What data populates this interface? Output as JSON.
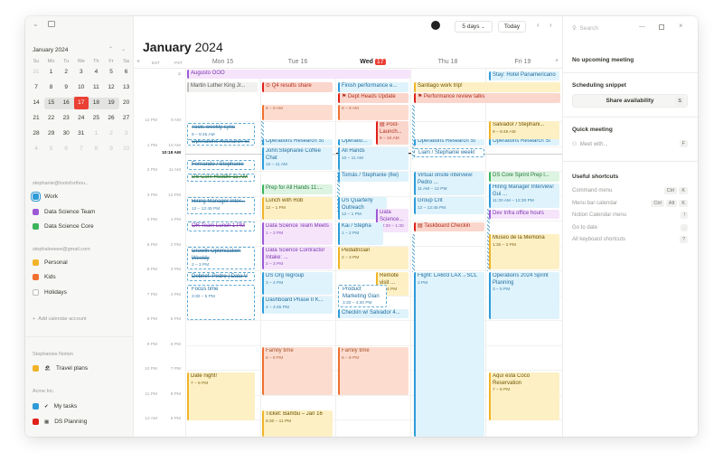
{
  "sidebar": {
    "mini_calendar": {
      "title": "January 2024",
      "weekdays": [
        "Su",
        "Mo",
        "Tu",
        "We",
        "Th",
        "Fr",
        "Sa"
      ],
      "weeks": [
        [
          "31",
          "1",
          "2",
          "3",
          "4",
          "5",
          "6"
        ],
        [
          "7",
          "8",
          "9",
          "10",
          "11",
          "12",
          "13"
        ],
        [
          "14",
          "15",
          "16",
          "17",
          "18",
          "19",
          "20"
        ],
        [
          "21",
          "22",
          "23",
          "24",
          "25",
          "26",
          "27"
        ],
        [
          "28",
          "29",
          "30",
          "31",
          "1",
          "2",
          "3"
        ],
        [
          "4",
          "5",
          "6",
          "7",
          "8",
          "9",
          "10"
        ]
      ],
      "today": "17"
    },
    "accounts": [
      {
        "name": "stephanie@toolsforthou...",
        "calendars": [
          {
            "label": "Work",
            "color": "#2e9bd8"
          },
          {
            "label": "Data Science Team",
            "color": "#9b59d6"
          },
          {
            "label": "Data Science Core",
            "color": "#3bb45c"
          }
        ]
      },
      {
        "name": "stephaleeeee@gmail.com",
        "calendars": [
          {
            "label": "Personal",
            "color": "#f0b429"
          },
          {
            "label": "Kids",
            "color": "#f07030"
          },
          {
            "label": "Holidays",
            "color": "#bdbdbd"
          }
        ]
      }
    ],
    "add_account": "Add calendar account",
    "notion": {
      "name": "Stephanies Notion",
      "items": [
        {
          "label": "Travel plans",
          "icon": "🏖",
          "color": "#f0b429"
        }
      ]
    },
    "acme": {
      "name": "Acme Inc.",
      "items": [
        {
          "label": "My tasks",
          "icon": "✔",
          "color": "#2e9bd8"
        },
        {
          "label": "DS Planning",
          "icon": "▦",
          "color": "#e0201a"
        }
      ]
    }
  },
  "header": {
    "month": "January",
    "year": "2024",
    "view": "5 days",
    "today_button": "Today",
    "tz": [
      "EST",
      "PST"
    ],
    "days": [
      {
        "label": "Mon 15"
      },
      {
        "label": "Tue 16"
      },
      {
        "label": "Wed",
        "badge": "17"
      },
      {
        "label": "Thu 18"
      },
      {
        "label": "Fri 19"
      }
    ],
    "now": "10:18 AM"
  },
  "time_labels": {
    "est": [
      "12 PM",
      "1 PM",
      "2 PM",
      "3 PM",
      "4 PM",
      "5 PM",
      "6 PM",
      "7 PM",
      "8 PM",
      "9 PM",
      "10 PM",
      "11 PM",
      "12 AM"
    ],
    "pst": [
      "9 AM",
      "10 AM",
      "11 AM",
      "12 PM",
      "1 PM",
      "2 PM",
      "3 PM",
      "4 PM",
      "5 PM",
      "6 PM",
      "7 PM",
      "8 PM",
      "9 PM"
    ]
  },
  "colors": {
    "blue": {
      "bg": "#dff3fc",
      "bar": "#2e9bd8",
      "fg": "#1f6d9e"
    },
    "red": {
      "bg": "#fbd6cc",
      "bar": "#e0201a",
      "fg": "#b0301e"
    },
    "salmon": {
      "bg": "#fcdccf",
      "bar": "#f07030",
      "fg": "#a8502a"
    },
    "yellow": {
      "bg": "#fdf0c4",
      "bar": "#f0b429",
      "fg": "#6e5200"
    },
    "purple": {
      "bg": "#f6e4fb",
      "bar": "#9b59d6",
      "fg": "#7b35b0"
    },
    "green": {
      "bg": "#dcf4e1",
      "bar": "#3bb45c",
      "fg": "#23773a"
    },
    "gray": {
      "bg": "#f1f1ef",
      "bar": "#bdbdbd",
      "fg": "#55534e"
    },
    "today": "#eb4034"
  },
  "events": [
    {
      "title": "Augusto OOO",
      "color": "purple"
    },
    {
      "title": "Martin Luther King Jr...",
      "color": "gray"
    },
    {
      "title": "⊙ Q4 results share",
      "color": "red"
    },
    {
      "title": "Finish performance e...",
      "color": "blue"
    },
    {
      "title": "Santiago work trip!",
      "color": "yellow"
    },
    {
      "title": "Stay: Hotel Panamericano",
      "color": "blue"
    },
    {
      "title": "⚑ Dept Heads Update",
      "color": "red"
    },
    {
      "title": "⚑ Performance review talks",
      "color": "red"
    },
    {
      "title": "",
      "time": "8 – 9 AM",
      "color": "salmon"
    },
    {
      "title": "",
      "time": "8 – 9 AM",
      "color": "salmon"
    },
    {
      "title": "Tools weekly sync",
      "time": "9 – 9:45 AM",
      "color": "blue",
      "style": "declined"
    },
    {
      "title": "▤ Post-Launch...",
      "time": "9 – 10 AM",
      "color": "red"
    },
    {
      "title": "Salvador / Stephani...",
      "time": "9 – 9:45 AM",
      "color": "yellow"
    },
    {
      "title": "Operations Research St",
      "color": "blue",
      "style": "declined"
    },
    {
      "title": "Operations Research St",
      "color": "blue"
    },
    {
      "title": "Operations R",
      "color": "blue"
    },
    {
      "title": "Operations Research St",
      "color": "blue"
    },
    {
      "title": "Operations Research St",
      "color": "blue"
    },
    {
      "title": "John:Stephanie Coffee Chat",
      "time": "10 – 11 AM",
      "color": "blue"
    },
    {
      "title": "All Hands",
      "time": "10 – 11 AM",
      "color": "blue"
    },
    {
      "title": "Liam / Stephanie weekl",
      "color": "blue",
      "style": "tentative"
    },
    {
      "title": "Fernando / Stephanie",
      "color": "blue",
      "style": "declined"
    },
    {
      "title": "DS Core Huddle 11 AM",
      "color": "green",
      "style": "declined"
    },
    {
      "title": "Tomás / Stephanie (6w)",
      "color": "blue"
    },
    {
      "title": "Virtual onsite interview: Pedro ...",
      "time": "11 AM – 12 PM",
      "color": "blue"
    },
    {
      "title": "DS Core Sprint Prep l...",
      "color": "green"
    },
    {
      "title": "Prep for All Hands 11:...",
      "color": "green"
    },
    {
      "title": "Hiring Manager Interview: Gui ...",
      "time": "11:30 AM – 12:30 PM",
      "color": "blue"
    },
    {
      "title": "Group Crit",
      "time": "12 – 12:45 PM",
      "color": "blue"
    },
    {
      "title": "Hiring Manager Inter...",
      "time": "12 – 12:45 PM",
      "color": "blue",
      "style": "declined"
    },
    {
      "title": "Lunch with Rob",
      "time": "12 – 1 PM",
      "color": "yellow"
    },
    {
      "title": "DS Quarterly Outreach",
      "time": "12 – 1 PM",
      "color": "blue"
    },
    {
      "title": "Data Science...",
      "time": "12:30 – 1:30",
      "color": "purple"
    },
    {
      "title": "Dev Infra office hours",
      "color": "purple"
    },
    {
      "title": "▤ Taskboard Checkin",
      "color": "red"
    },
    {
      "title": "OR Team Lunch 1 PM",
      "color": "purple",
      "style": "declined"
    },
    {
      "title": "Data Science Team Meets",
      "time": "1 – 2 PM",
      "color": "purple"
    },
    {
      "title": "Kai / Stepha",
      "time": "1 – 2 PM",
      "color": "blue"
    },
    {
      "title": "Museo de la Memoria",
      "time": "1:30 – 3 PM",
      "color": "yellow"
    },
    {
      "title": "Growth Optimization Weekly",
      "time": "2 – 3 PM",
      "color": "blue",
      "style": "declined"
    },
    {
      "title": "Data Science Contractor Intake: ...",
      "time": "2 – 3 PM",
      "color": "purple"
    },
    {
      "title": "Pediatrician",
      "time": "2 – 3 PM",
      "color": "yellow"
    },
    {
      "title": "Flight: LA603 LAX→SCL",
      "time": "3 PM",
      "color": "blue"
    },
    {
      "title": "Operations 2024 Sprint Planning",
      "time": "3 – 5 PM",
      "color": "blue"
    },
    {
      "title": "Debrief: Pedro | Data V",
      "color": "blue",
      "style": "declined"
    },
    {
      "title": "DS Org regroup",
      "time": "3 – 4 PM",
      "color": "blue"
    },
    {
      "title": "Remote visit ...",
      "time": "3 – 4 PM",
      "color": "yellow"
    },
    {
      "title": "Product Marketing Gian",
      "time": "3:30 – 4:30 PM",
      "color": "blue",
      "style": "tentative"
    },
    {
      "title": "Focus time",
      "time": "3:30 – 5 PM",
      "color": "blue",
      "style": "tentative"
    },
    {
      "title": "Dashboard Phase II K...",
      "time": "4 – 4:45 PM",
      "color": "blue"
    },
    {
      "title": "Checkin w/ Salvador 4...",
      "color": "blue"
    },
    {
      "title": "Family time",
      "time": "6 – 8 PM",
      "color": "salmon"
    },
    {
      "title": "Family time",
      "time": "6 – 8 PM",
      "color": "salmon"
    },
    {
      "title": "Date night!",
      "time": "7 – 9 PM",
      "color": "yellow"
    },
    {
      "title": "Aquí está Coco Reservation",
      "time": "7 – 9 PM",
      "color": "yellow"
    },
    {
      "title": "Ticket: Bambu – Jan 16",
      "time": "8:30 – 11 PM",
      "color": "yellow"
    }
  ],
  "right_panel": {
    "search_placeholder": "Search",
    "no_meeting": "No upcoming meeting",
    "snippet_title": "Scheduling snippet",
    "share_button": "Share availability",
    "share_key": "S",
    "quick_title": "Quick meeting",
    "meet_placeholder": "Meet with...",
    "meet_key": "F",
    "shortcuts_title": "Useful shortcuts",
    "shortcuts": [
      {
        "label": "Command menu",
        "keys": [
          "Ctrl",
          "K"
        ]
      },
      {
        "label": "Menu bar calendar",
        "keys": [
          "Ctrl",
          "Alt",
          "K"
        ]
      },
      {
        "label": "Notion Calendar menu",
        "keys": [
          "!"
        ]
      },
      {
        "label": "Go to date",
        "keys": [
          "."
        ]
      },
      {
        "label": "All keyboard shortcuts",
        "keys": [
          "?"
        ]
      }
    ]
  }
}
